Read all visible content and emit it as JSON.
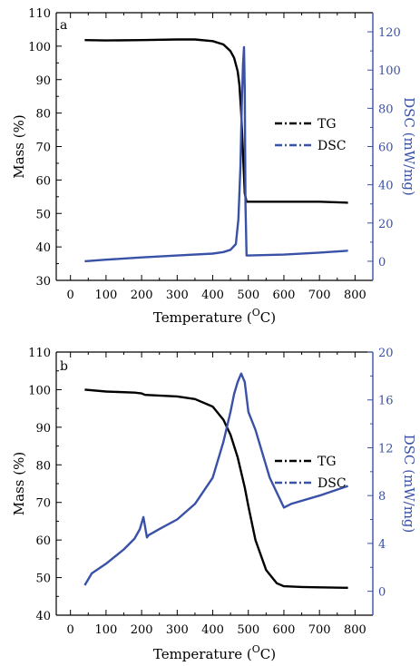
{
  "colors": {
    "tg": "#000000",
    "dsc": "#3951a6",
    "axis": "#000000"
  },
  "chart_data": [
    {
      "type": "line",
      "panel_label": "a",
      "xlabel_text": "Temperature (",
      "xlabel_sup": "O",
      "xlabel_unit": "C)",
      "ylabel": "Mass (%)",
      "y2label": "DSC (mW/mg)",
      "xlim": [
        -40,
        850
      ],
      "ylim": [
        30,
        110
      ],
      "y2lim": [
        -10,
        130
      ],
      "xticks": [
        0,
        100,
        200,
        300,
        400,
        500,
        600,
        700,
        800
      ],
      "yticks": [
        30,
        40,
        50,
        60,
        70,
        80,
        90,
        100,
        110
      ],
      "y2ticks": [
        0,
        20,
        40,
        60,
        80,
        100,
        120
      ],
      "legend": {
        "position": "right-middle",
        "entries": [
          "TG",
          "DSC"
        ]
      },
      "series": [
        {
          "name": "TG",
          "axis": "left",
          "x": [
            40,
            100,
            200,
            300,
            350,
            400,
            430,
            450,
            460,
            470,
            475,
            480,
            485,
            490,
            495,
            500,
            600,
            700,
            780
          ],
          "y": [
            101.8,
            101.7,
            101.8,
            102.0,
            102.0,
            101.5,
            100.5,
            98.5,
            96.5,
            92.5,
            88.5,
            80,
            68,
            56,
            53.5,
            53.5,
            53.5,
            53.5,
            53.2
          ]
        },
        {
          "name": "DSC",
          "axis": "right",
          "x": [
            40,
            100,
            200,
            300,
            400,
            430,
            450,
            465,
            472,
            478,
            482,
            485,
            488,
            490,
            492,
            495,
            500,
            600,
            700,
            780
          ],
          "y": [
            0,
            0.8,
            2,
            3,
            4,
            4.8,
            6,
            9,
            22,
            50,
            85,
            103,
            112,
            90,
            30,
            3,
            3,
            3.5,
            4.5,
            5.5
          ]
        }
      ]
    },
    {
      "type": "line",
      "panel_label": "b",
      "xlabel_text": "Temperature (",
      "xlabel_sup": "O",
      "xlabel_unit": "C)",
      "ylabel": "Mass (%)",
      "y2label": "DSC (mW/mg)",
      "xlim": [
        -40,
        850
      ],
      "ylim": [
        40,
        110
      ],
      "y2lim": [
        -2,
        20
      ],
      "xticks": [
        0,
        100,
        200,
        300,
        400,
        500,
        600,
        700,
        800
      ],
      "yticks": [
        40,
        50,
        60,
        70,
        80,
        90,
        100,
        110
      ],
      "y2ticks": [
        0,
        4,
        8,
        12,
        16,
        20
      ],
      "legend": {
        "position": "right-middle",
        "entries": [
          "TG",
          "DSC"
        ]
      },
      "series": [
        {
          "name": "TG",
          "axis": "left",
          "x": [
            40,
            100,
            180,
            200,
            210,
            300,
            350,
            400,
            430,
            450,
            470,
            490,
            500,
            520,
            550,
            580,
            600,
            650,
            700,
            780
          ],
          "y": [
            100,
            99.5,
            99.2,
            99,
            98.6,
            98.2,
            97.5,
            95.5,
            92,
            88,
            82,
            74,
            69,
            60,
            52,
            48.5,
            47.7,
            47.5,
            47.4,
            47.3
          ]
        },
        {
          "name": "DSC",
          "axis": "right",
          "x": [
            40,
            60,
            100,
            150,
            180,
            195,
            205,
            215,
            220,
            250,
            300,
            350,
            400,
            430,
            450,
            460,
            470,
            480,
            490,
            500,
            520,
            560,
            600,
            620,
            700,
            780
          ],
          "y": [
            0.5,
            1.5,
            2.3,
            3.5,
            4.4,
            5.2,
            6.2,
            4.5,
            4.7,
            5.2,
            6,
            7.3,
            9.5,
            12.5,
            15,
            16.5,
            17.5,
            18.2,
            17.5,
            15,
            13.5,
            9.5,
            7,
            7.3,
            8,
            8.8
          ]
        }
      ]
    }
  ]
}
